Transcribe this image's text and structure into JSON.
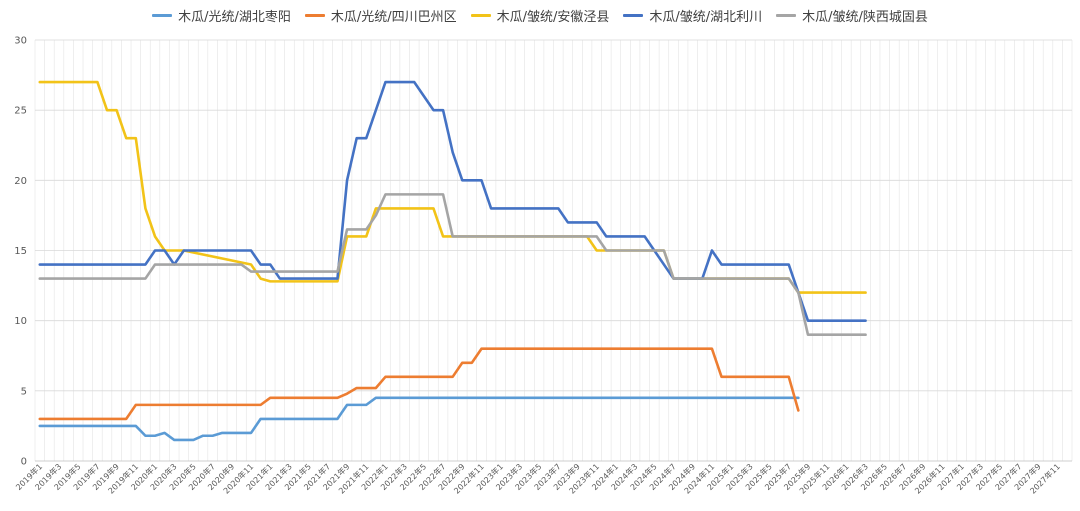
{
  "chart_data": {
    "type": "line",
    "title": "",
    "xlabel": "",
    "ylabel": "",
    "ylim": [
      0,
      30
    ],
    "yticks": [
      0,
      5,
      10,
      15,
      20,
      25,
      30
    ],
    "grid": true,
    "legend_position": "top",
    "x_start": "2019-01",
    "x_end": "2027-12",
    "x_ticks": [
      "2019年1",
      "2019年3",
      "2019年5",
      "2019年7",
      "2019年9",
      "2019年11",
      "2020年1",
      "2020年3",
      "2020年5",
      "2020年7",
      "2020年9",
      "2020年11",
      "2021年1",
      "2021年3",
      "2021年5",
      "2021年7",
      "2021年9",
      "2021年11",
      "2022年1",
      "2022年3",
      "2022年5",
      "2022年7",
      "2022年9",
      "2022年11",
      "2023年1",
      "2023年3",
      "2023年5",
      "2023年7",
      "2023年9",
      "2023年11",
      "2024年1",
      "2024年3",
      "2024年5",
      "2024年7",
      "2024年9",
      "2024年11",
      "2025年1",
      "2025年3",
      "2025年5",
      "2025年7",
      "2025年9",
      "2025年11",
      "2026年1",
      "2026年3",
      "2026年5",
      "2026年7",
      "2026年9",
      "2026年11",
      "2027年1",
      "2027年3",
      "2027年5",
      "2027年7",
      "2027年9",
      "2027年11"
    ],
    "series": [
      {
        "name": "木瓜/光统/湖北枣阳",
        "color": "#5b9bd5",
        "points": [
          [
            "2019-01",
            2.5
          ],
          [
            "2019-11",
            2.5
          ],
          [
            "2019-12",
            1.8
          ],
          [
            "2020-01",
            1.8
          ],
          [
            "2020-02",
            2.0
          ],
          [
            "2020-03",
            1.5
          ],
          [
            "2020-05",
            1.5
          ],
          [
            "2020-06",
            1.8
          ],
          [
            "2020-07",
            1.8
          ],
          [
            "2020-08",
            2.0
          ],
          [
            "2020-11",
            2.0
          ],
          [
            "2020-12",
            3.0
          ],
          [
            "2021-08",
            3.0
          ],
          [
            "2021-09",
            4.0
          ],
          [
            "2021-11",
            4.0
          ],
          [
            "2021-12",
            4.5
          ],
          [
            "2025-08",
            4.5
          ]
        ]
      },
      {
        "name": "木瓜/光统/四川巴州区",
        "color": "#ed7d31",
        "points": [
          [
            "2019-01",
            3.0
          ],
          [
            "2019-10",
            3.0
          ],
          [
            "2019-11",
            4.0
          ],
          [
            "2020-12",
            4.0
          ],
          [
            "2021-01",
            4.5
          ],
          [
            "2021-08",
            4.5
          ],
          [
            "2021-09",
            4.8
          ],
          [
            "2021-10",
            5.2
          ],
          [
            "2021-12",
            5.2
          ],
          [
            "2022-01",
            6.0
          ],
          [
            "2022-08",
            6.0
          ],
          [
            "2022-09",
            7.0
          ],
          [
            "2022-10",
            7.0
          ],
          [
            "2022-11",
            8.0
          ],
          [
            "2024-11",
            8.0
          ],
          [
            "2024-12",
            6.0
          ],
          [
            "2025-07",
            6.0
          ],
          [
            "2025-08",
            3.6
          ]
        ]
      },
      {
        "name": "木瓜/皱统/安徽泾县",
        "color": "#f2c318",
        "points": [
          [
            "2019-01",
            27
          ],
          [
            "2019-07",
            27
          ],
          [
            "2019-08",
            25
          ],
          [
            "2019-09",
            25
          ],
          [
            "2019-10",
            23
          ],
          [
            "2019-11",
            23
          ],
          [
            "2019-12",
            18
          ],
          [
            "2020-01",
            16
          ],
          [
            "2020-02",
            15
          ],
          [
            "2020-03",
            15
          ],
          [
            "2020-04",
            15
          ],
          [
            "2020-11",
            14
          ],
          [
            "2020-12",
            13
          ],
          [
            "2021-01",
            12.8
          ],
          [
            "2021-08",
            12.8
          ],
          [
            "2021-09",
            16
          ],
          [
            "2021-11",
            16
          ],
          [
            "2021-12",
            18
          ],
          [
            "2022-06",
            18
          ],
          [
            "2022-07",
            16
          ],
          [
            "2022-08",
            16
          ],
          [
            "2023-10",
            16
          ],
          [
            "2023-11",
            15
          ],
          [
            "2024-05",
            15
          ],
          [
            "2024-06",
            15
          ],
          [
            "2024-07",
            13
          ],
          [
            "2025-07",
            13
          ],
          [
            "2025-08",
            12
          ],
          [
            "2026-03",
            12
          ]
        ]
      },
      {
        "name": "木瓜/皱统/湖北利川",
        "color": "#4472c4",
        "points": [
          [
            "2019-01",
            14
          ],
          [
            "2019-12",
            14
          ],
          [
            "2020-01",
            15
          ],
          [
            "2020-02",
            15
          ],
          [
            "2020-03",
            14
          ],
          [
            "2020-04",
            15
          ],
          [
            "2020-11",
            15
          ],
          [
            "2020-12",
            14
          ],
          [
            "2021-01",
            14
          ],
          [
            "2021-02",
            13
          ],
          [
            "2021-08",
            13
          ],
          [
            "2021-09",
            20
          ],
          [
            "2021-10",
            23
          ],
          [
            "2021-11",
            23
          ],
          [
            "2022-01",
            27
          ],
          [
            "2022-04",
            27
          ],
          [
            "2022-06",
            25
          ],
          [
            "2022-07",
            25
          ],
          [
            "2022-08",
            22
          ],
          [
            "2022-09",
            20
          ],
          [
            "2022-11",
            20
          ],
          [
            "2022-12",
            18
          ],
          [
            "2023-07",
            18
          ],
          [
            "2023-08",
            17
          ],
          [
            "2023-11",
            17
          ],
          [
            "2023-12",
            16
          ],
          [
            "2024-04",
            16
          ],
          [
            "2024-05",
            15
          ],
          [
            "2024-07",
            13
          ],
          [
            "2024-10",
            13
          ],
          [
            "2024-11",
            15
          ],
          [
            "2024-12",
            14
          ],
          [
            "2025-07",
            14
          ],
          [
            "2025-08",
            12
          ],
          [
            "2025-09",
            10
          ],
          [
            "2026-03",
            10
          ]
        ]
      },
      {
        "name": "木瓜/皱统/陕西城固县",
        "color": "#a5a5a5",
        "points": [
          [
            "2019-01",
            13
          ],
          [
            "2019-12",
            13
          ],
          [
            "2020-01",
            14
          ],
          [
            "2020-10",
            14
          ],
          [
            "2020-11",
            13.5
          ],
          [
            "2021-08",
            13.5
          ],
          [
            "2021-09",
            16.5
          ],
          [
            "2021-11",
            16.5
          ],
          [
            "2021-12",
            17.5
          ],
          [
            "2022-01",
            19
          ],
          [
            "2022-07",
            19
          ],
          [
            "2022-08",
            16
          ],
          [
            "2023-11",
            16
          ],
          [
            "2023-12",
            15
          ],
          [
            "2024-06",
            15
          ],
          [
            "2024-07",
            13
          ],
          [
            "2025-07",
            13
          ],
          [
            "2025-08",
            12
          ],
          [
            "2025-09",
            9
          ],
          [
            "2026-03",
            9
          ]
        ]
      }
    ]
  }
}
